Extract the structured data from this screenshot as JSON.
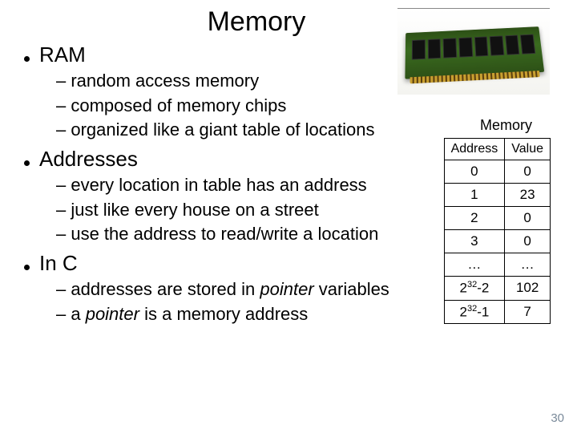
{
  "title": "Memory",
  "sections": [
    {
      "heading": "RAM",
      "items": [
        "random access memory",
        "composed of memory chips",
        "organized like a giant table of locations"
      ]
    },
    {
      "heading": "Addresses",
      "items": [
        "every location in table has an address",
        "just like every house on a street",
        "use the address to read/write a location"
      ]
    },
    {
      "heading": "In C",
      "items_html": [
        "addresses are stored in <span class=\"italic\">pointer</span> variables",
        "a <span class=\"italic\">pointer</span> is a memory address"
      ]
    }
  ],
  "memory_label": "Memory",
  "table": {
    "headers": [
      "Address",
      "Value"
    ],
    "rows": [
      [
        "0",
        "0"
      ],
      [
        "1",
        "23"
      ],
      [
        "2",
        "0"
      ],
      [
        "3",
        "0"
      ],
      [
        "…",
        "…"
      ],
      [
        "2^32-2",
        "102"
      ],
      [
        "2^32-1",
        "7"
      ]
    ]
  },
  "page_number": "30",
  "colors": {
    "background": "#ffffff",
    "text": "#000000",
    "page_num": "#7a8a9a",
    "ram_pcb": "#2d5016",
    "ram_contacts": "#c9a030"
  },
  "typography": {
    "title_fontsize": 34,
    "l1_fontsize": 26,
    "l2_fontsize": 22,
    "table_fontsize": 17,
    "font_family": "Arial"
  }
}
